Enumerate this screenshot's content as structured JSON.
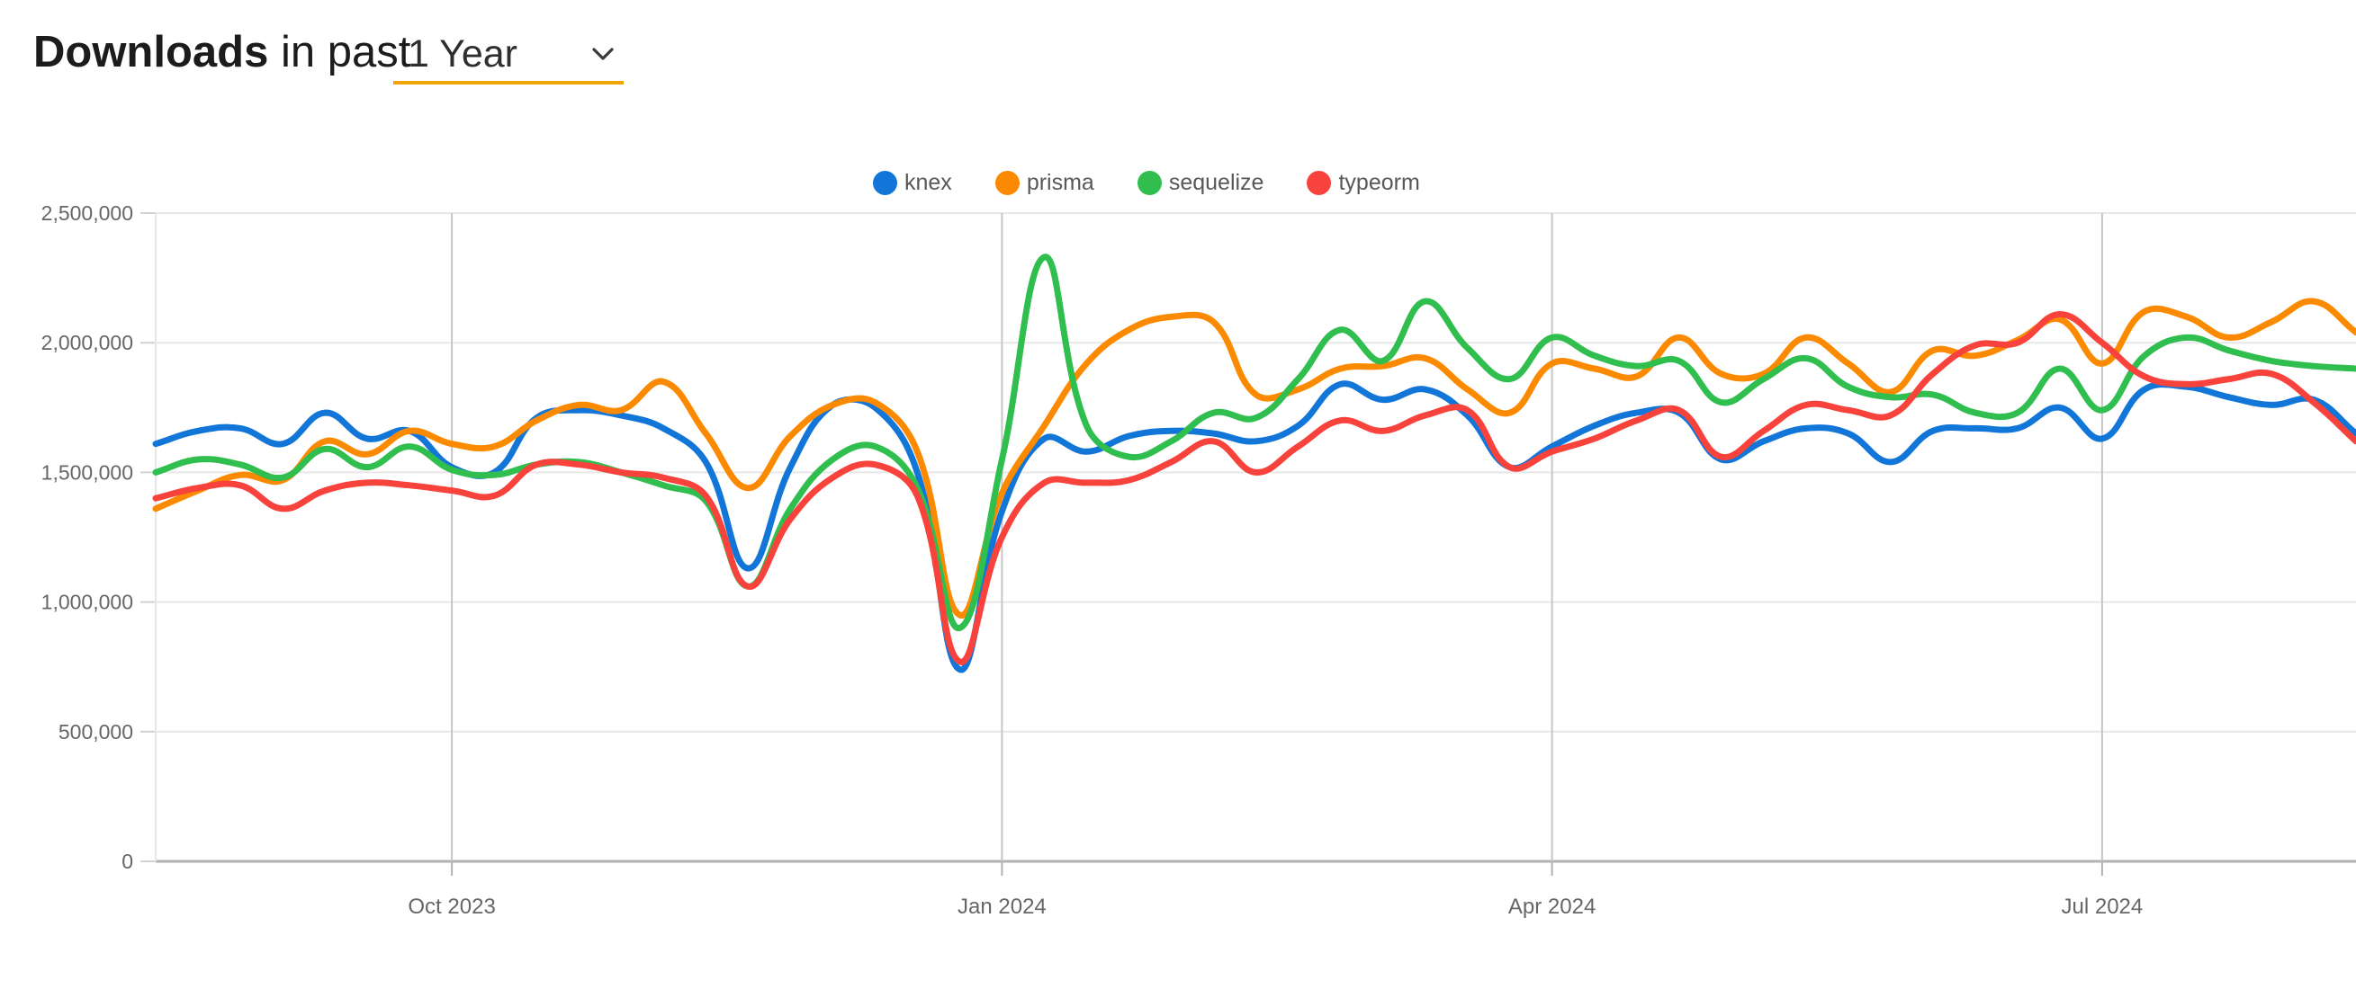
{
  "header": {
    "title_bold": "Downloads",
    "title_rest": " in past",
    "range_value": "1 Year"
  },
  "chart_data": {
    "type": "line",
    "title": "Downloads in past 1 Year",
    "x_description": "weekly npm downloads from mid-August 2023 to mid-August 2024, 53 weekly points",
    "grid": "on",
    "legend_position": "top-center",
    "ylim": [
      0,
      2500000
    ],
    "y_ticks": [
      {
        "label": "0",
        "value": 0
      },
      {
        "label": "500,000",
        "value": 500000
      },
      {
        "label": "1,000,000",
        "value": 1000000
      },
      {
        "label": "1,500,000",
        "value": 1500000
      },
      {
        "label": "2,000,000",
        "value": 2000000
      },
      {
        "label": "2,500,000",
        "value": 2500000
      }
    ],
    "x_tick_labels": [
      "Oct 2023",
      "Jan 2024",
      "Apr 2024",
      "Jul 2024"
    ],
    "x_tick_positions": [
      7,
      20,
      33,
      46
    ],
    "series": [
      {
        "name": "knex",
        "color": "#1276D8",
        "values": [
          1610000,
          1660000,
          1670000,
          1610000,
          1730000,
          1630000,
          1660000,
          1520000,
          1500000,
          1710000,
          1740000,
          1720000,
          1670000,
          1540000,
          1130000,
          1520000,
          1760000,
          1750000,
          1500000,
          740000,
          1350000,
          1630000,
          1580000,
          1640000,
          1660000,
          1650000,
          1620000,
          1680000,
          1840000,
          1780000,
          1820000,
          1720000,
          1520000,
          1600000,
          1680000,
          1730000,
          1730000,
          1550000,
          1620000,
          1670000,
          1650000,
          1540000,
          1660000,
          1670000,
          1670000,
          1750000,
          1630000,
          1820000,
          1830000,
          1790000,
          1760000,
          1780000,
          1650000
        ]
      },
      {
        "name": "prisma",
        "color": "#FB8A00",
        "values": [
          1360000,
          1430000,
          1490000,
          1470000,
          1620000,
          1570000,
          1660000,
          1610000,
          1600000,
          1700000,
          1760000,
          1740000,
          1850000,
          1650000,
          1440000,
          1640000,
          1760000,
          1770000,
          1580000,
          950000,
          1420000,
          1680000,
          1920000,
          2050000,
          2100000,
          2080000,
          1800000,
          1820000,
          1900000,
          1910000,
          1940000,
          1820000,
          1730000,
          1920000,
          1900000,
          1870000,
          2020000,
          1880000,
          1880000,
          2020000,
          1920000,
          1810000,
          1970000,
          1950000,
          2010000,
          2090000,
          1920000,
          2120000,
          2100000,
          2020000,
          2080000,
          2160000,
          2040000
        ]
      },
      {
        "name": "sequelize",
        "color": "#30BE4E",
        "values": [
          1500000,
          1550000,
          1530000,
          1480000,
          1590000,
          1520000,
          1600000,
          1510000,
          1490000,
          1530000,
          1540000,
          1500000,
          1450000,
          1390000,
          1060000,
          1360000,
          1550000,
          1600000,
          1440000,
          900000,
          1550000,
          2330000,
          1680000,
          1560000,
          1620000,
          1730000,
          1710000,
          1860000,
          2050000,
          1930000,
          2160000,
          1980000,
          1860000,
          2020000,
          1950000,
          1910000,
          1930000,
          1770000,
          1860000,
          1940000,
          1830000,
          1790000,
          1800000,
          1730000,
          1730000,
          1900000,
          1740000,
          1950000,
          2020000,
          1970000,
          1930000,
          1910000,
          1900000
        ]
      },
      {
        "name": "typeorm",
        "color": "#F8423C",
        "values": [
          1400000,
          1440000,
          1450000,
          1360000,
          1430000,
          1460000,
          1450000,
          1430000,
          1410000,
          1530000,
          1530000,
          1500000,
          1480000,
          1410000,
          1060000,
          1320000,
          1480000,
          1530000,
          1410000,
          770000,
          1250000,
          1460000,
          1460000,
          1470000,
          1540000,
          1620000,
          1500000,
          1600000,
          1700000,
          1660000,
          1720000,
          1740000,
          1520000,
          1580000,
          1630000,
          1700000,
          1740000,
          1560000,
          1660000,
          1760000,
          1740000,
          1720000,
          1880000,
          1990000,
          2000000,
          2110000,
          2000000,
          1870000,
          1840000,
          1860000,
          1880000,
          1770000,
          1620000
        ]
      }
    ]
  }
}
